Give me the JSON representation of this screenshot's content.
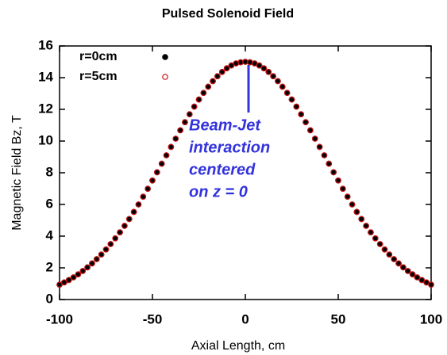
{
  "chart_data": {
    "type": "scatter",
    "title": "Pulsed Solenoid Field",
    "x_label": "Axial Length, cm",
    "y_label": "Magnetic Field Bz, T",
    "annotation": [
      "Beam-Jet",
      "interaction",
      "centered",
      "on z = 0"
    ],
    "legend": "upper left",
    "xlim": [
      -100,
      100
    ],
    "xticks": [
      -100,
      -50,
      0,
      50,
      100
    ],
    "ylim": [
      0,
      16
    ],
    "yticks": [
      0,
      2,
      4,
      6,
      8,
      10,
      12,
      14,
      16
    ],
    "x": [
      -100,
      -97.5,
      -95,
      -92.5,
      -90,
      -87.5,
      -85,
      -82.5,
      -80,
      -77.5,
      -75,
      -72.5,
      -70,
      -67.5,
      -65,
      -62.5,
      -60,
      -57.5,
      -55,
      -52.5,
      -50,
      -47.5,
      -45,
      -42.5,
      -40,
      -37.5,
      -35,
      -32.5,
      -30,
      -27.5,
      -25,
      -22.5,
      -20,
      -17.5,
      -15,
      -12.5,
      -10,
      -7.5,
      -5,
      -2.5,
      0,
      2.5,
      5,
      7.5,
      10,
      12.5,
      15,
      17.5,
      20,
      22.5,
      25,
      27.5,
      30,
      32.5,
      35,
      37.5,
      40,
      42.5,
      45,
      47.5,
      50,
      52.5,
      55,
      57.5,
      60,
      62.5,
      65,
      67.5,
      70,
      72.5,
      75,
      77.5,
      80,
      82.5,
      85,
      87.5,
      90,
      92.5,
      95,
      97.5,
      100
    ],
    "series": [
      {
        "name": "r=0cm",
        "color": "#000000",
        "marker": "filled",
        "values": [
          0.94,
          1.08,
          1.23,
          1.4,
          1.59,
          1.8,
          2.03,
          2.28,
          2.55,
          2.84,
          3.16,
          3.5,
          3.86,
          4.24,
          4.65,
          5.08,
          5.53,
          6.0,
          6.49,
          6.99,
          7.51,
          8.03,
          8.57,
          9.1,
          9.63,
          10.15,
          10.68,
          11.19,
          11.69,
          12.17,
          12.62,
          13.04,
          13.43,
          13.78,
          14.09,
          14.36,
          14.59,
          14.77,
          14.9,
          14.97,
          15.0,
          14.97,
          14.9,
          14.77,
          14.59,
          14.36,
          14.09,
          13.78,
          13.43,
          13.04,
          12.62,
          12.17,
          11.69,
          11.19,
          10.68,
          10.15,
          9.63,
          9.1,
          8.57,
          8.03,
          7.51,
          6.99,
          6.49,
          6.0,
          5.53,
          5.08,
          4.65,
          4.24,
          3.86,
          3.5,
          3.16,
          2.84,
          2.55,
          2.28,
          2.03,
          1.8,
          1.59,
          1.4,
          1.23,
          1.08,
          0.94
        ]
      },
      {
        "name": "r=5cm",
        "color": "#cc1111",
        "marker": "open",
        "values": [
          0.94,
          1.08,
          1.23,
          1.4,
          1.59,
          1.8,
          2.03,
          2.28,
          2.55,
          2.84,
          3.16,
          3.5,
          3.86,
          4.24,
          4.65,
          5.08,
          5.53,
          6.0,
          6.49,
          6.99,
          7.51,
          8.03,
          8.57,
          9.1,
          9.63,
          10.15,
          10.68,
          11.19,
          11.69,
          12.17,
          12.62,
          13.04,
          13.43,
          13.78,
          14.09,
          14.36,
          14.59,
          14.77,
          14.9,
          14.97,
          15.0,
          14.97,
          14.9,
          14.77,
          14.59,
          14.36,
          14.09,
          13.78,
          13.43,
          13.04,
          12.62,
          12.17,
          11.69,
          11.19,
          10.68,
          10.15,
          9.63,
          9.1,
          8.57,
          8.03,
          7.51,
          6.99,
          6.49,
          6.0,
          5.53,
          5.08,
          4.65,
          4.24,
          3.86,
          3.5,
          3.16,
          2.84,
          2.55,
          2.28,
          2.03,
          1.8,
          1.59,
          1.4,
          1.23,
          1.08,
          0.94
        ]
      }
    ]
  }
}
